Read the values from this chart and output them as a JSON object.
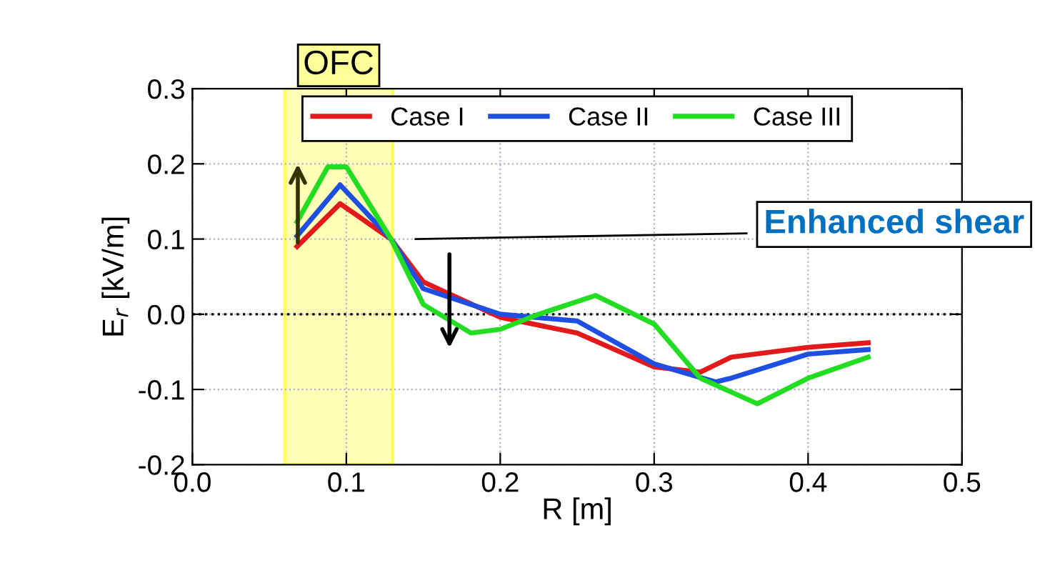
{
  "chart_data": {
    "type": "line",
    "xlabel": "R [m]",
    "ylabel": "E$_{r}$ [kV/m]",
    "xlim": [
      0,
      0.5
    ],
    "ylim": [
      -0.2,
      0.3
    ],
    "xticks": [
      {
        "value": 0,
        "label": "0.0"
      },
      {
        "value": 0.1,
        "label": "0.1"
      },
      {
        "value": 0.2,
        "label": "0.2"
      },
      {
        "value": 0.3,
        "label": "0.3"
      },
      {
        "value": 0.4,
        "label": "0.4"
      },
      {
        "value": 0.5,
        "label": "0.5"
      }
    ],
    "yticks": [
      {
        "value": -0.2,
        "label": "-0.2"
      },
      {
        "value": -0.1,
        "label": "-0.1"
      },
      {
        "value": 0,
        "label": "0.0"
      },
      {
        "value": 0.1,
        "label": "0.1"
      },
      {
        "value": 0.2,
        "label": "0.2"
      },
      {
        "value": 0.3,
        "label": "0.3"
      }
    ],
    "grid": true,
    "legend": "top",
    "line_style": "solid",
    "marker": "none",
    "series": [
      {
        "name": "Case I",
        "color": "#e31a1c",
        "x": [
          0.068,
          0.096,
          0.129,
          0.15,
          0.2,
          0.25,
          0.3,
          0.33,
          0.35,
          0.4,
          0.439
        ],
        "values": [
          0.09,
          0.147,
          0.1,
          0.043,
          -0.004,
          -0.025,
          -0.07,
          -0.077,
          -0.057,
          -0.044,
          -0.038
        ]
      },
      {
        "name": "Case II",
        "color": "#1f4fe0",
        "x": [
          0.068,
          0.096,
          0.129,
          0.15,
          0.2,
          0.25,
          0.3,
          0.34,
          0.35,
          0.4,
          0.439
        ],
        "values": [
          0.104,
          0.172,
          0.1,
          0.034,
          0.0,
          -0.009,
          -0.066,
          -0.09,
          -0.085,
          -0.053,
          -0.047
        ]
      },
      {
        "name": "Case III",
        "color": "#22dd22",
        "x": [
          0.068,
          0.088,
          0.1,
          0.129,
          0.15,
          0.181,
          0.2,
          0.225,
          0.262,
          0.3,
          0.33,
          0.367,
          0.4,
          0.439
        ],
        "values": [
          0.123,
          0.196,
          0.196,
          0.1,
          0.013,
          -0.025,
          -0.02,
          0.0,
          0.025,
          -0.013,
          -0.085,
          -0.119,
          -0.085,
          -0.057
        ]
      }
    ],
    "ref_lines": [
      {
        "axis": "y",
        "value": 0,
        "color": "#000000",
        "line_style": "dotted"
      }
    ],
    "bands": [
      {
        "axis": "x",
        "from": 0.06,
        "to": 0.13,
        "label": "OFC",
        "color": "#ffff99"
      }
    ],
    "annotations": [
      "Enhanced shear"
    ]
  }
}
